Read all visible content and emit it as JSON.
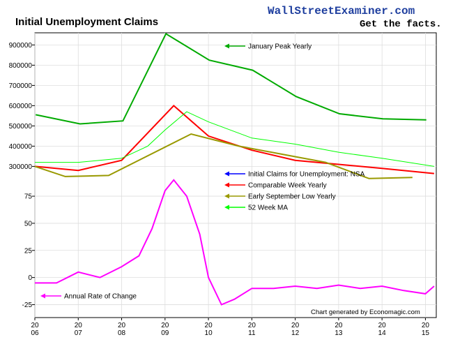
{
  "brand": {
    "name": "WallStreetExaminer.com",
    "tagline": "Get the facts."
  },
  "credit": "Chart generated by Economagic.com",
  "colors": {
    "weekly": "#0000ff",
    "peak": "#00aa00",
    "comparable": "#ff0000",
    "low": "#999900",
    "ma": "#00ff00",
    "roc": "#ff00ff"
  },
  "chart_data": [
    {
      "type": "line",
      "title": "Initial Unemployment Claims",
      "x_tick_labels": [
        {
          "year": 2006,
          "text": [
            "20",
            "06"
          ]
        },
        {
          "year": 2007,
          "text": [
            "20",
            "07"
          ]
        },
        {
          "year": 2008,
          "text": [
            "20",
            "08"
          ]
        },
        {
          "year": 2009,
          "text": [
            "20",
            "09"
          ]
        },
        {
          "year": 2010,
          "text": [
            "20",
            "10"
          ]
        },
        {
          "year": 2011,
          "text": [
            "20",
            "11"
          ]
        },
        {
          "year": 2012,
          "text": [
            "20",
            "12"
          ]
        },
        {
          "year": 2013,
          "text": [
            "20",
            "13"
          ]
        },
        {
          "year": 2014,
          "text": [
            "20",
            "14"
          ]
        },
        {
          "year": 2015,
          "text": [
            "20",
            "15"
          ]
        }
      ],
      "xlim": [
        2006.0,
        2015.25
      ],
      "ylim": [
        260000,
        960000
      ],
      "y_ticks": [
        300000,
        400000,
        500000,
        600000,
        700000,
        800000,
        900000
      ],
      "y_tick_labels": [
        "300000",
        "400000",
        "500000",
        "600000",
        "700000",
        "800000",
        "900000"
      ],
      "series": [
        {
          "name": "January Peak Yearly",
          "key": "peak",
          "x": [
            2006.02,
            2007.04,
            2008.03,
            2009.02,
            2010.02,
            2011.02,
            2012.02,
            2013.02,
            2014.02,
            2015.02
          ],
          "y": [
            555000,
            510000,
            525000,
            955000,
            825000,
            775000,
            645000,
            560000,
            535000,
            530000
          ]
        },
        {
          "name": "Comparable Week Yearly",
          "key": "comparable",
          "x": [
            2006.0,
            2007.0,
            2008.0,
            2009.2,
            2010.0,
            2011.0,
            2012.0,
            2013.0,
            2014.0,
            2015.2
          ],
          "y": [
            300000,
            280000,
            330000,
            600000,
            450000,
            380000,
            330000,
            310000,
            290000,
            265000
          ]
        },
        {
          "name": "Early September Low Yearly",
          "key": "low",
          "x": [
            2006.0,
            2006.7,
            2007.7,
            2009.6,
            2010.7,
            2011.7,
            2012.7,
            2013.7,
            2014.7
          ],
          "y": [
            300000,
            250000,
            255000,
            460000,
            400000,
            360000,
            320000,
            240000,
            245000
          ]
        },
        {
          "name": "52 Week MA",
          "key": "ma",
          "x": [
            2006.0,
            2007.0,
            2008.0,
            2008.6,
            2009.0,
            2009.5,
            2010.0,
            2011.0,
            2012.0,
            2013.0,
            2014.0,
            2015.2
          ],
          "y": [
            320000,
            320000,
            340000,
            400000,
            480000,
            570000,
            520000,
            440000,
            410000,
            370000,
            340000,
            300000
          ]
        }
      ],
      "legend": [
        {
          "label": "January Peak Yearly",
          "key": "peak"
        },
        {
          "label": "Initial Claims for Unemployment: NSA",
          "key": "weekly"
        },
        {
          "label": "Comparable Week Yearly",
          "key": "comparable"
        },
        {
          "label": "Early September Low Yearly",
          "key": "low"
        },
        {
          "label": "52 Week MA",
          "key": "ma"
        }
      ]
    },
    {
      "type": "line",
      "title": "",
      "xlim": [
        2006.0,
        2015.25
      ],
      "ylim": [
        -35,
        95
      ],
      "y_ticks": [
        -25,
        0,
        25,
        50,
        75
      ],
      "y_tick_labels": [
        "-25",
        "0",
        "25",
        "50",
        "75"
      ],
      "series": [
        {
          "name": "Annual Rate of Change",
          "key": "roc",
          "x": [
            2006.0,
            2006.5,
            2007.0,
            2007.5,
            2008.0,
            2008.4,
            2008.7,
            2009.0,
            2009.2,
            2009.5,
            2009.8,
            2010.0,
            2010.3,
            2010.6,
            2011.0,
            2011.5,
            2012.0,
            2012.5,
            2013.0,
            2013.5,
            2014.0,
            2014.5,
            2015.0,
            2015.2
          ],
          "y": [
            -5,
            -5,
            5,
            0,
            10,
            20,
            45,
            80,
            90,
            75,
            40,
            0,
            -25,
            -20,
            -10,
            -10,
            -8,
            -10,
            -7,
            -10,
            -8,
            -12,
            -15,
            -8
          ]
        }
      ],
      "legend": [
        {
          "label": "Annual Rate of Change",
          "key": "roc"
        }
      ]
    }
  ]
}
